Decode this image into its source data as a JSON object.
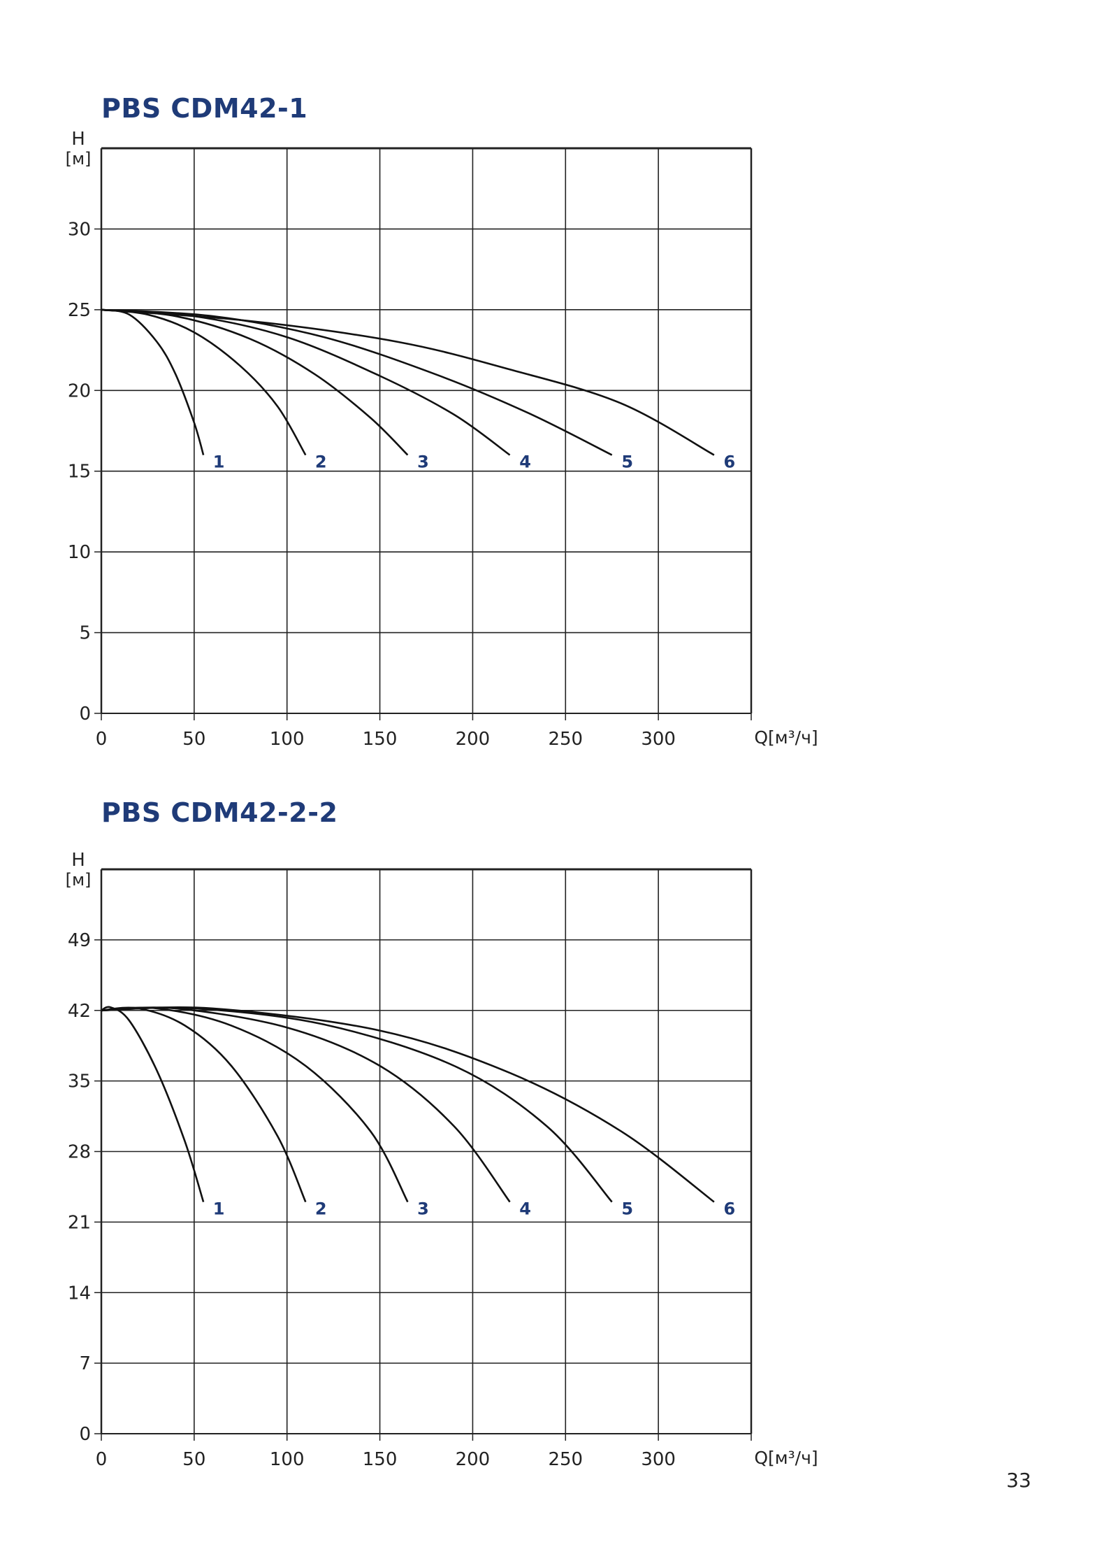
{
  "page": {
    "number": "33"
  },
  "chart_data": [
    {
      "type": "line",
      "title": "PBS CDM42-1",
      "ylabel": "H",
      "ylabel_unit": "[м]",
      "xlabel": "Q[м³/ч]",
      "xlim": [
        0,
        350
      ],
      "ylim": [
        0,
        35
      ],
      "xticks": [
        0,
        50,
        100,
        150,
        200,
        250,
        300
      ],
      "xtick_labels": [
        "0",
        "50",
        "100",
        "150",
        "200",
        "250",
        "300"
      ],
      "yticks": [
        0,
        5,
        10,
        15,
        20,
        25,
        30
      ],
      "ytick_labels": [
        "0",
        "5",
        "10",
        "15",
        "20",
        "25",
        "30"
      ],
      "grid": true,
      "curve_color": "#111111",
      "label_color": "#1f3b78",
      "series": [
        {
          "name": "1",
          "x": [
            0,
            15,
            30,
            40,
            50,
            55
          ],
          "y": [
            25,
            24.7,
            23,
            21,
            18,
            16
          ]
        },
        {
          "name": "2",
          "x": [
            0,
            25,
            50,
            75,
            95,
            110
          ],
          "y": [
            25,
            24.7,
            23.6,
            21.5,
            19,
            16
          ]
        },
        {
          "name": "3",
          "x": [
            0,
            40,
            80,
            115,
            145,
            165
          ],
          "y": [
            25,
            24.6,
            23.2,
            21,
            18.3,
            16
          ]
        },
        {
          "name": "4",
          "x": [
            0,
            50,
            100,
            150,
            190,
            220
          ],
          "y": [
            25,
            24.6,
            23.3,
            20.9,
            18.5,
            16
          ]
        },
        {
          "name": "5",
          "x": [
            0,
            60,
            120,
            180,
            230,
            275
          ],
          "y": [
            25,
            24.6,
            23.3,
            21,
            18.6,
            16
          ]
        },
        {
          "name": "6",
          "x": [
            0,
            80,
            160,
            220,
            280,
            330
          ],
          "y": [
            25,
            24.3,
            23,
            21.3,
            19.2,
            16
          ]
        }
      ]
    },
    {
      "type": "line",
      "title": "PBS CDM42-2-2",
      "ylabel": "H",
      "ylabel_unit": "[м]",
      "xlabel": "Q[м³/ч]",
      "xlim": [
        0,
        350
      ],
      "ylim": [
        0,
        56
      ],
      "xticks": [
        0,
        50,
        100,
        150,
        200,
        250,
        300
      ],
      "xtick_labels": [
        "0",
        "50",
        "100",
        "150",
        "200",
        "250",
        "300"
      ],
      "yticks": [
        0,
        7,
        14,
        21,
        28,
        35,
        42,
        49
      ],
      "ytick_labels": [
        "0",
        "7",
        "14",
        "21",
        "28",
        "35",
        "42",
        "49"
      ],
      "grid": true,
      "curve_color": "#111111",
      "label_color": "#1f3b78",
      "series": [
        {
          "name": "1",
          "x": [
            0,
            5,
            15,
            30,
            45,
            55
          ],
          "y": [
            42,
            42.3,
            41,
            36,
            29,
            23
          ]
        },
        {
          "name": "2",
          "x": [
            0,
            20,
            45,
            70,
            95,
            110
          ],
          "y": [
            42,
            42.2,
            40.5,
            36.5,
            29.5,
            23
          ]
        },
        {
          "name": "3",
          "x": [
            0,
            30,
            70,
            110,
            145,
            165
          ],
          "y": [
            42,
            42.2,
            40.5,
            36.5,
            30,
            23
          ]
        },
        {
          "name": "4",
          "x": [
            0,
            40,
            100,
            150,
            190,
            220
          ],
          "y": [
            42,
            42.2,
            40.3,
            36.5,
            30.5,
            23
          ]
        },
        {
          "name": "5",
          "x": [
            0,
            50,
            120,
            190,
            240,
            275
          ],
          "y": [
            42,
            42.2,
            40.6,
            36.5,
            30.5,
            23
          ]
        },
        {
          "name": "6",
          "x": [
            0,
            60,
            150,
            220,
            280,
            330
          ],
          "y": [
            42,
            42.2,
            40,
            35.8,
            30,
            23
          ]
        }
      ]
    }
  ]
}
